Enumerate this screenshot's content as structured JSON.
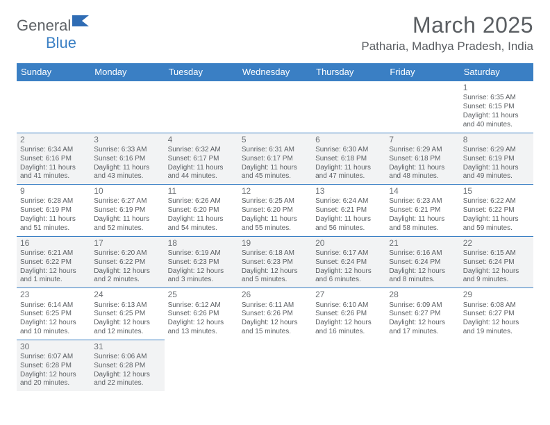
{
  "logo": {
    "text1": "General",
    "text2": "Blue",
    "shape_color": "#2f6cb4"
  },
  "title": "March 2025",
  "location": "Patharia, Madhya Pradesh, India",
  "colors": {
    "header_bg": "#3a7fc4",
    "header_text": "#ffffff",
    "body_text": "#5a5e62",
    "shade_bg": "#f2f3f4",
    "rule": "#3a7fc4"
  },
  "weekdays": [
    "Sunday",
    "Monday",
    "Tuesday",
    "Wednesday",
    "Thursday",
    "Friday",
    "Saturday"
  ],
  "rows": [
    {
      "shade": false,
      "cells": [
        null,
        null,
        null,
        null,
        null,
        null,
        {
          "n": "1",
          "sr": "Sunrise: 6:35 AM",
          "ss": "Sunset: 6:15 PM",
          "d1": "Daylight: 11 hours",
          "d2": "and 40 minutes."
        }
      ]
    },
    {
      "shade": true,
      "cells": [
        {
          "n": "2",
          "sr": "Sunrise: 6:34 AM",
          "ss": "Sunset: 6:16 PM",
          "d1": "Daylight: 11 hours",
          "d2": "and 41 minutes."
        },
        {
          "n": "3",
          "sr": "Sunrise: 6:33 AM",
          "ss": "Sunset: 6:16 PM",
          "d1": "Daylight: 11 hours",
          "d2": "and 43 minutes."
        },
        {
          "n": "4",
          "sr": "Sunrise: 6:32 AM",
          "ss": "Sunset: 6:17 PM",
          "d1": "Daylight: 11 hours",
          "d2": "and 44 minutes."
        },
        {
          "n": "5",
          "sr": "Sunrise: 6:31 AM",
          "ss": "Sunset: 6:17 PM",
          "d1": "Daylight: 11 hours",
          "d2": "and 45 minutes."
        },
        {
          "n": "6",
          "sr": "Sunrise: 6:30 AM",
          "ss": "Sunset: 6:18 PM",
          "d1": "Daylight: 11 hours",
          "d2": "and 47 minutes."
        },
        {
          "n": "7",
          "sr": "Sunrise: 6:29 AM",
          "ss": "Sunset: 6:18 PM",
          "d1": "Daylight: 11 hours",
          "d2": "and 48 minutes."
        },
        {
          "n": "8",
          "sr": "Sunrise: 6:29 AM",
          "ss": "Sunset: 6:19 PM",
          "d1": "Daylight: 11 hours",
          "d2": "and 49 minutes."
        }
      ]
    },
    {
      "shade": false,
      "cells": [
        {
          "n": "9",
          "sr": "Sunrise: 6:28 AM",
          "ss": "Sunset: 6:19 PM",
          "d1": "Daylight: 11 hours",
          "d2": "and 51 minutes."
        },
        {
          "n": "10",
          "sr": "Sunrise: 6:27 AM",
          "ss": "Sunset: 6:19 PM",
          "d1": "Daylight: 11 hours",
          "d2": "and 52 minutes."
        },
        {
          "n": "11",
          "sr": "Sunrise: 6:26 AM",
          "ss": "Sunset: 6:20 PM",
          "d1": "Daylight: 11 hours",
          "d2": "and 54 minutes."
        },
        {
          "n": "12",
          "sr": "Sunrise: 6:25 AM",
          "ss": "Sunset: 6:20 PM",
          "d1": "Daylight: 11 hours",
          "d2": "and 55 minutes."
        },
        {
          "n": "13",
          "sr": "Sunrise: 6:24 AM",
          "ss": "Sunset: 6:21 PM",
          "d1": "Daylight: 11 hours",
          "d2": "and 56 minutes."
        },
        {
          "n": "14",
          "sr": "Sunrise: 6:23 AM",
          "ss": "Sunset: 6:21 PM",
          "d1": "Daylight: 11 hours",
          "d2": "and 58 minutes."
        },
        {
          "n": "15",
          "sr": "Sunrise: 6:22 AM",
          "ss": "Sunset: 6:22 PM",
          "d1": "Daylight: 11 hours",
          "d2": "and 59 minutes."
        }
      ]
    },
    {
      "shade": true,
      "cells": [
        {
          "n": "16",
          "sr": "Sunrise: 6:21 AM",
          "ss": "Sunset: 6:22 PM",
          "d1": "Daylight: 12 hours",
          "d2": "and 1 minute."
        },
        {
          "n": "17",
          "sr": "Sunrise: 6:20 AM",
          "ss": "Sunset: 6:22 PM",
          "d1": "Daylight: 12 hours",
          "d2": "and 2 minutes."
        },
        {
          "n": "18",
          "sr": "Sunrise: 6:19 AM",
          "ss": "Sunset: 6:23 PM",
          "d1": "Daylight: 12 hours",
          "d2": "and 3 minutes."
        },
        {
          "n": "19",
          "sr": "Sunrise: 6:18 AM",
          "ss": "Sunset: 6:23 PM",
          "d1": "Daylight: 12 hours",
          "d2": "and 5 minutes."
        },
        {
          "n": "20",
          "sr": "Sunrise: 6:17 AM",
          "ss": "Sunset: 6:24 PM",
          "d1": "Daylight: 12 hours",
          "d2": "and 6 minutes."
        },
        {
          "n": "21",
          "sr": "Sunrise: 6:16 AM",
          "ss": "Sunset: 6:24 PM",
          "d1": "Daylight: 12 hours",
          "d2": "and 8 minutes."
        },
        {
          "n": "22",
          "sr": "Sunrise: 6:15 AM",
          "ss": "Sunset: 6:24 PM",
          "d1": "Daylight: 12 hours",
          "d2": "and 9 minutes."
        }
      ]
    },
    {
      "shade": false,
      "cells": [
        {
          "n": "23",
          "sr": "Sunrise: 6:14 AM",
          "ss": "Sunset: 6:25 PM",
          "d1": "Daylight: 12 hours",
          "d2": "and 10 minutes."
        },
        {
          "n": "24",
          "sr": "Sunrise: 6:13 AM",
          "ss": "Sunset: 6:25 PM",
          "d1": "Daylight: 12 hours",
          "d2": "and 12 minutes."
        },
        {
          "n": "25",
          "sr": "Sunrise: 6:12 AM",
          "ss": "Sunset: 6:26 PM",
          "d1": "Daylight: 12 hours",
          "d2": "and 13 minutes."
        },
        {
          "n": "26",
          "sr": "Sunrise: 6:11 AM",
          "ss": "Sunset: 6:26 PM",
          "d1": "Daylight: 12 hours",
          "d2": "and 15 minutes."
        },
        {
          "n": "27",
          "sr": "Sunrise: 6:10 AM",
          "ss": "Sunset: 6:26 PM",
          "d1": "Daylight: 12 hours",
          "d2": "and 16 minutes."
        },
        {
          "n": "28",
          "sr": "Sunrise: 6:09 AM",
          "ss": "Sunset: 6:27 PM",
          "d1": "Daylight: 12 hours",
          "d2": "and 17 minutes."
        },
        {
          "n": "29",
          "sr": "Sunrise: 6:08 AM",
          "ss": "Sunset: 6:27 PM",
          "d1": "Daylight: 12 hours",
          "d2": "and 19 minutes."
        }
      ]
    },
    {
      "shade": true,
      "cells": [
        {
          "n": "30",
          "sr": "Sunrise: 6:07 AM",
          "ss": "Sunset: 6:28 PM",
          "d1": "Daylight: 12 hours",
          "d2": "and 20 minutes."
        },
        {
          "n": "31",
          "sr": "Sunrise: 6:06 AM",
          "ss": "Sunset: 6:28 PM",
          "d1": "Daylight: 12 hours",
          "d2": "and 22 minutes."
        },
        null,
        null,
        null,
        null,
        null
      ]
    }
  ]
}
